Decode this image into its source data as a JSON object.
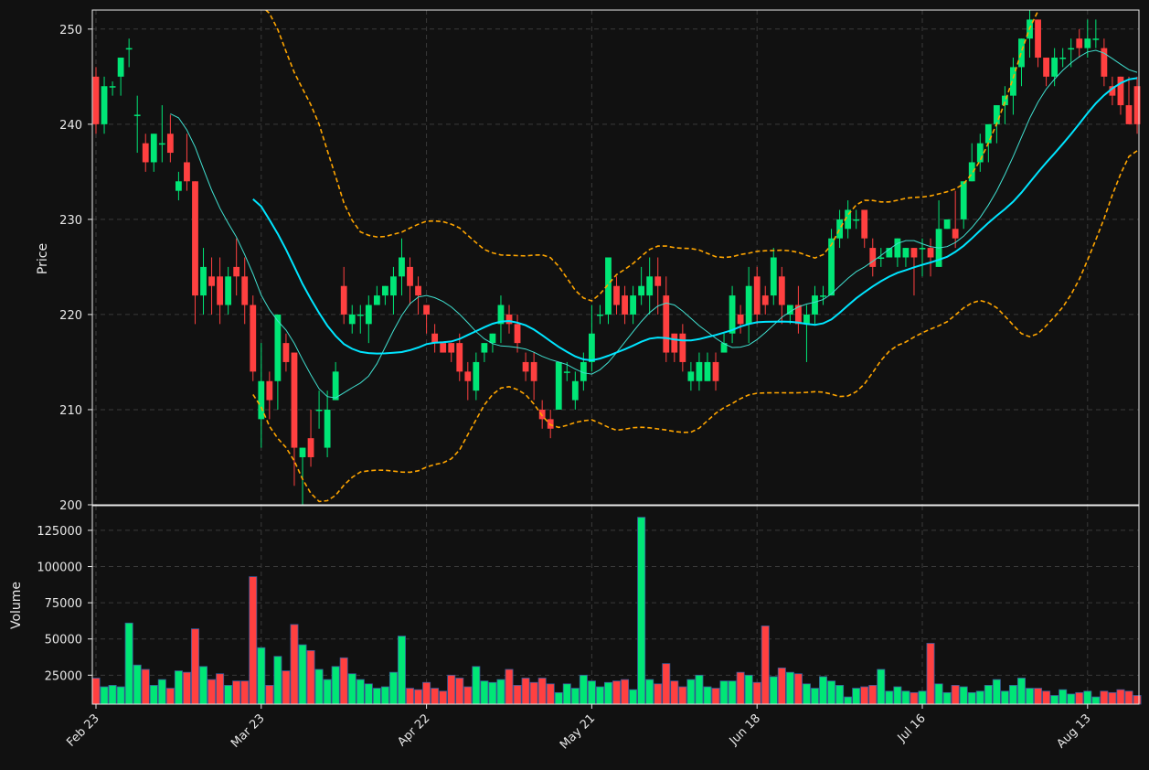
{
  "chart_data": {
    "type": "candlestick",
    "subtype": "ohlc-with-volume",
    "colors": {
      "background": "#111111",
      "up": "#00e676",
      "down": "#ff4040",
      "ma_fast": "#40e0d0",
      "ma_slow": "#00e5ff",
      "bollinger": "#ffa500",
      "grid": "#3a3a3a",
      "text": "#e8e8e8"
    },
    "price_panel": {
      "ylabel": "Price",
      "ylim": [
        200,
        252
      ],
      "yticks": [
        200,
        210,
        220,
        230,
        240,
        250
      ],
      "grid": true
    },
    "volume_panel": {
      "ylabel": "Volume",
      "ylim": [
        5000,
        142000
      ],
      "yticks": [
        25000,
        50000,
        75000,
        100000,
        125000
      ],
      "yticklabels": [
        "25000",
        "50000",
        "75000",
        "100000",
        "125000"
      ],
      "grid": true
    },
    "xaxis": {
      "tick_labels": [
        "Feb 23",
        "Mar 23",
        "Apr 22",
        "May 21",
        "Jun 18",
        "Jul 16",
        "Aug 13"
      ],
      "tick_index": [
        0,
        20,
        40,
        60,
        80,
        100,
        120
      ],
      "label_rotation": 45
    },
    "bars": [
      [
        245,
        240,
        246,
        239,
        23000
      ],
      [
        240,
        244,
        245,
        239,
        17000
      ],
      [
        244,
        244,
        244.5,
        243,
        18000
      ],
      [
        245,
        247,
        247,
        243,
        17000
      ],
      [
        248,
        248,
        249,
        246,
        61000
      ],
      [
        241,
        241,
        243,
        237,
        32000
      ],
      [
        238,
        236,
        239,
        235,
        29000
      ],
      [
        236,
        239,
        239,
        235,
        18000
      ],
      [
        238,
        238,
        242,
        236,
        22000
      ],
      [
        239,
        237,
        241,
        236,
        16000
      ],
      [
        233,
        234,
        235,
        232,
        28000
      ],
      [
        236,
        234,
        239,
        233,
        27000
      ],
      [
        234,
        222,
        234,
        219,
        57000
      ],
      [
        222,
        225,
        227,
        220,
        31000
      ],
      [
        224,
        223,
        226,
        220,
        22000
      ],
      [
        224,
        221,
        226,
        219,
        26000
      ],
      [
        221,
        224,
        225,
        220,
        18000
      ],
      [
        225,
        224,
        228,
        222,
        21000
      ],
      [
        224,
        221,
        226,
        219,
        21000
      ],
      [
        221,
        214,
        222,
        213,
        93000
      ],
      [
        209,
        213,
        217,
        206,
        44000
      ],
      [
        213,
        211,
        214,
        209,
        18000
      ],
      [
        213,
        220,
        220,
        210,
        38000
      ],
      [
        217,
        215,
        218,
        214,
        28000
      ],
      [
        216,
        206,
        216,
        202,
        60000
      ],
      [
        205,
        206,
        206,
        200,
        46000
      ],
      [
        207,
        205,
        210,
        204,
        42000
      ],
      [
        210,
        210,
        212,
        208,
        29000
      ],
      [
        206,
        210,
        212,
        205,
        22000
      ],
      [
        211,
        214,
        215,
        211,
        31000
      ],
      [
        223,
        220,
        225,
        219,
        37000
      ],
      [
        219,
        220,
        221,
        218,
        26000
      ],
      [
        220,
        220,
        221,
        218,
        22000
      ],
      [
        219,
        221,
        222,
        217,
        19000
      ],
      [
        221,
        222,
        223,
        221,
        16000
      ],
      [
        222,
        223,
        223,
        221,
        17000
      ],
      [
        222,
        224,
        225,
        220,
        27000
      ],
      [
        224,
        226,
        228,
        222,
        52000
      ],
      [
        225,
        223,
        226,
        221,
        16000
      ],
      [
        223,
        222,
        224,
        220,
        15000
      ],
      [
        221,
        220,
        221,
        218,
        20000
      ],
      [
        218,
        217,
        219,
        216,
        16000
      ],
      [
        217,
        216,
        217,
        216,
        14000
      ],
      [
        217,
        216,
        217,
        215,
        25000
      ],
      [
        217,
        214,
        218,
        213,
        23000
      ],
      [
        214,
        213,
        215,
        211,
        17000
      ],
      [
        212,
        215,
        216,
        211,
        31000
      ],
      [
        216,
        217,
        217,
        215,
        21000
      ],
      [
        217,
        218,
        218,
        216,
        20000
      ],
      [
        219,
        221,
        222,
        217,
        22000
      ],
      [
        220,
        219,
        221,
        218,
        29000
      ],
      [
        219,
        217,
        220,
        216,
        18000
      ],
      [
        215,
        214,
        216,
        213,
        23000
      ],
      [
        215,
        213,
        216,
        211,
        20000
      ],
      [
        210,
        209,
        211,
        208,
        23000
      ],
      [
        209,
        208,
        210,
        207,
        19000
      ],
      [
        210,
        215,
        215,
        210,
        13000
      ],
      [
        214,
        214,
        215,
        213,
        19000
      ],
      [
        211,
        213,
        214,
        210,
        16000
      ],
      [
        213,
        215,
        216,
        212,
        25000
      ],
      [
        215,
        218,
        221,
        214,
        21000
      ],
      [
        220,
        220,
        221,
        219,
        17000
      ],
      [
        220,
        226,
        226,
        219,
        20000
      ],
      [
        223,
        221,
        224,
        220,
        21000
      ],
      [
        222,
        220,
        223,
        219,
        22000
      ],
      [
        220,
        222,
        223,
        219,
        15000
      ],
      [
        222,
        223,
        225,
        221,
        134000
      ],
      [
        222,
        224,
        226,
        220,
        22000
      ],
      [
        224,
        223,
        226,
        220,
        19000
      ],
      [
        222,
        216,
        224,
        215,
        33000
      ],
      [
        218,
        216,
        218,
        215,
        21000
      ],
      [
        218,
        215,
        219,
        214,
        17000
      ],
      [
        213,
        214,
        215,
        212,
        22000
      ],
      [
        213,
        215,
        216,
        212,
        25000
      ],
      [
        213,
        215,
        216,
        213,
        17000
      ],
      [
        215,
        213,
        216,
        212,
        16000
      ],
      [
        216,
        217,
        218,
        216,
        21000
      ],
      [
        218,
        222,
        223,
        217,
        21000
      ],
      [
        220,
        219,
        221,
        218,
        27000
      ],
      [
        219,
        223,
        225,
        217,
        25000
      ],
      [
        224,
        220,
        225,
        219,
        20000
      ],
      [
        222,
        221,
        223,
        220,
        59000
      ],
      [
        222,
        226,
        227,
        221,
        24000
      ],
      [
        224,
        221,
        225,
        219,
        30000
      ],
      [
        220,
        221,
        221,
        219,
        27000
      ],
      [
        221,
        219,
        223,
        218,
        26000
      ],
      [
        219,
        220,
        221,
        215,
        19000
      ],
      [
        220,
        222,
        223,
        219,
        16000
      ],
      [
        222,
        222,
        223,
        221,
        24000
      ],
      [
        222,
        228,
        229,
        222,
        21000
      ],
      [
        228,
        230,
        231,
        227,
        18000
      ],
      [
        229,
        231,
        232,
        228,
        10000
      ],
      [
        230,
        230,
        231,
        229,
        16000
      ],
      [
        231,
        228,
        231,
        227,
        17000
      ],
      [
        227,
        225,
        228,
        224,
        18000
      ],
      [
        226,
        226,
        227,
        225,
        29000
      ],
      [
        226,
        227,
        227,
        226,
        14000
      ],
      [
        226,
        228,
        228,
        225,
        17000
      ],
      [
        226,
        227,
        227,
        225,
        14000
      ],
      [
        227,
        226,
        227,
        222,
        13000
      ],
      [
        227,
        227,
        228,
        224,
        14000
      ],
      [
        227,
        226,
        228,
        224,
        47000
      ],
      [
        225,
        229,
        232,
        225,
        19000
      ],
      [
        229,
        230,
        230,
        229,
        13000
      ],
      [
        229,
        228,
        233,
        227,
        18000
      ],
      [
        230,
        234,
        234,
        229,
        17000
      ],
      [
        234,
        236,
        238,
        234,
        13000
      ],
      [
        236,
        238,
        239,
        235,
        14000
      ],
      [
        238,
        240,
        240,
        236,
        18000
      ],
      [
        240,
        242,
        242,
        238,
        22000
      ],
      [
        242,
        243,
        244,
        240,
        14000
      ],
      [
        243,
        246,
        247,
        241,
        18000
      ],
      [
        246,
        249,
        249,
        244,
        23000
      ],
      [
        249,
        251,
        252,
        247,
        16000
      ],
      [
        251,
        247,
        251,
        246,
        16000
      ],
      [
        247,
        245,
        247,
        244,
        14000
      ],
      [
        245,
        247,
        248,
        244,
        11000
      ],
      [
        247,
        247,
        248,
        246,
        15000
      ],
      [
        248,
        248,
        249,
        246,
        12000
      ],
      [
        249,
        248,
        250,
        247,
        13000
      ],
      [
        248,
        249,
        251,
        247,
        14000
      ],
      [
        249,
        249,
        251,
        248,
        10000
      ],
      [
        248,
        245,
        249,
        244,
        14000
      ],
      [
        244,
        243,
        245,
        242,
        13000
      ],
      [
        245,
        242,
        245,
        241,
        15000
      ],
      [
        242,
        240,
        245,
        240,
        14000
      ],
      [
        244,
        240,
        245,
        239,
        11000
      ]
    ],
    "ma_fast_window": 10,
    "ma_slow_window": 20,
    "bollinger_window": 20,
    "bollinger_k": 2
  }
}
